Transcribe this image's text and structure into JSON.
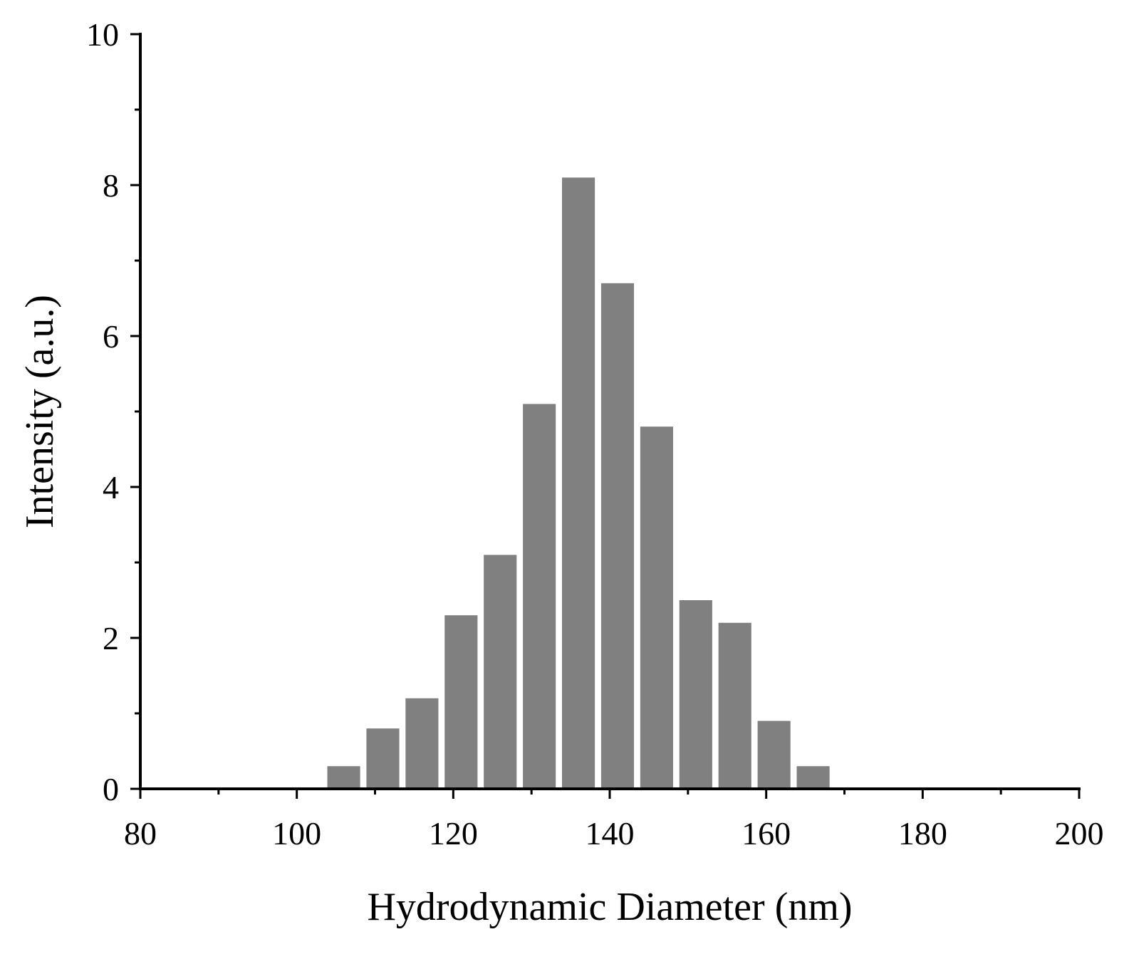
{
  "chart_data": {
    "type": "bar",
    "title": "",
    "xlabel": "Hydrodynamic Diameter (nm)",
    "ylabel": "Intensity (a.u.)",
    "xlim": [
      80,
      200
    ],
    "ylim": [
      0,
      10
    ],
    "xticks": [
      80,
      100,
      120,
      140,
      160,
      180,
      200
    ],
    "yticks": [
      0,
      2,
      4,
      6,
      8,
      10
    ],
    "bar_width": 4.2,
    "bar_color": "#808080",
    "grid": false,
    "legend": "none",
    "x": [
      106,
      111,
      116,
      121,
      126,
      131,
      136,
      141,
      146,
      151,
      156,
      161,
      166
    ],
    "values": [
      0.3,
      0.8,
      1.2,
      2.3,
      3.1,
      5.1,
      8.1,
      6.7,
      4.8,
      2.5,
      2.2,
      0.9,
      0.3
    ]
  }
}
